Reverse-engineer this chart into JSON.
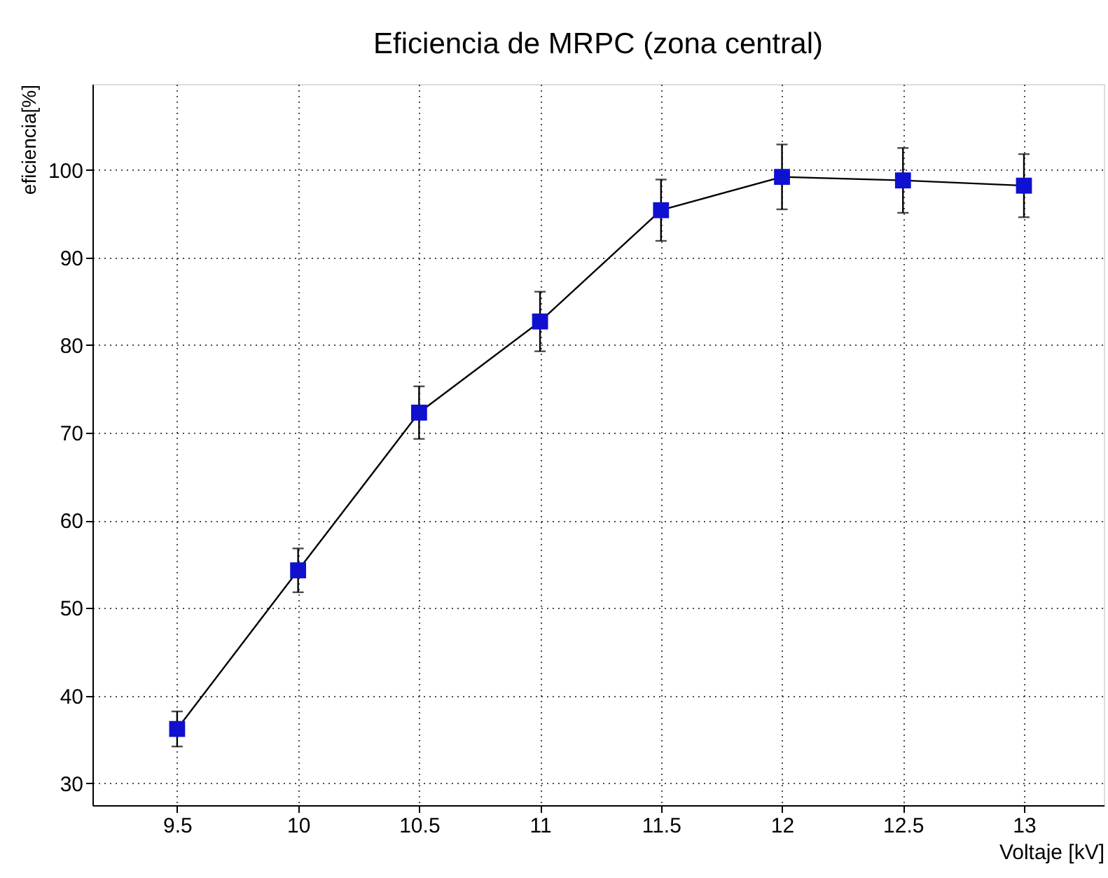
{
  "chart_data": {
    "type": "line",
    "title": "Eficiencia de MRPC (zona central)",
    "xlabel": "Voltaje [kV]",
    "ylabel": "eficiencia[%]",
    "x": [
      9.5,
      10,
      10.5,
      11,
      11.5,
      12,
      12.5,
      13
    ],
    "series": [
      {
        "color": "#1010d0",
        "values": [
          36.2,
          54.3,
          72.3,
          82.7,
          95.4,
          99.2,
          98.8,
          98.2
        ],
        "errors": [
          2.0,
          2.5,
          3.0,
          3.4,
          3.5,
          3.7,
          3.7,
          3.6
        ]
      }
    ],
    "xlim": [
      9.15,
      13.33
    ],
    "xticks": [
      9.5,
      10,
      10.5,
      11,
      11.5,
      12,
      12.5,
      13
    ],
    "ylim": [
      27.5,
      109.8
    ],
    "yticks": [
      30,
      40,
      50,
      60,
      70,
      80,
      90,
      100
    ],
    "grid": true,
    "marker": "square",
    "line_style": "solid"
  }
}
